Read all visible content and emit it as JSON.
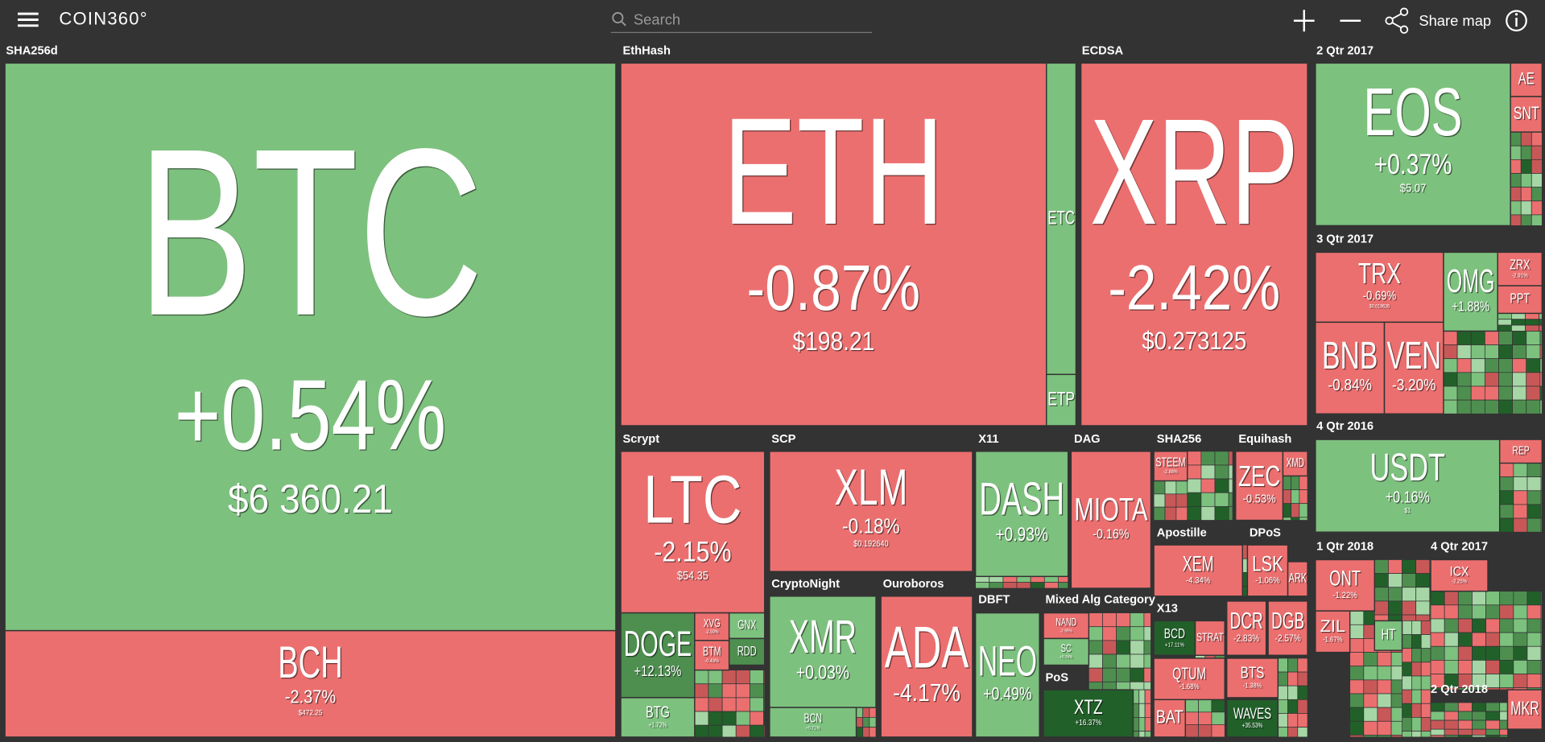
{
  "header": {
    "logo": "COIN360°",
    "search_placeholder": "Search",
    "share": "Share map"
  },
  "groups": [
    {
      "label": "SHA256d",
      "coins": [
        {
          "symbol": "BTC",
          "change": "+0.54%",
          "price": "$6 360.21"
        },
        {
          "symbol": "BCH",
          "change": "-2.37%",
          "price": "$472.25"
        }
      ]
    },
    {
      "label": "EthHash",
      "coins": [
        {
          "symbol": "ETH",
          "change": "-0.87%",
          "price": "$198.21"
        },
        {
          "symbol": "ETC"
        },
        {
          "symbol": "ETP"
        }
      ]
    },
    {
      "label": "ECDSA",
      "coins": [
        {
          "symbol": "XRP",
          "change": "-2.42%",
          "price": "$0.273125"
        }
      ]
    },
    {
      "label": "2 Qtr 2017",
      "coins": [
        {
          "symbol": "EOS",
          "change": "+0.37%",
          "price": "$5.07"
        },
        {
          "symbol": "AE"
        },
        {
          "symbol": "SNT"
        }
      ]
    },
    {
      "label": "3 Qtr 2017",
      "coins": [
        {
          "symbol": "TRX",
          "change": "-0.69%",
          "price": "$0.019626"
        },
        {
          "symbol": "BNB",
          "change": "-0.84%"
        },
        {
          "symbol": "VEN",
          "change": "-3.20%"
        },
        {
          "symbol": "OMG",
          "change": "+1.88%"
        },
        {
          "symbol": "ZRX",
          "change": "-2.91%"
        },
        {
          "symbol": "PPT"
        }
      ]
    },
    {
      "label": "4 Qtr 2016",
      "coins": [
        {
          "symbol": "USDT",
          "change": "+0.16%",
          "price": "$1"
        },
        {
          "symbol": "REP"
        }
      ]
    },
    {
      "label": "1 Qtr 2018",
      "coins": [
        {
          "symbol": "ONT",
          "change": "-1.22%"
        },
        {
          "symbol": "ZIL",
          "change": "-1.67%"
        },
        {
          "symbol": "HT"
        }
      ]
    },
    {
      "label": "4 Qtr 2017",
      "coins": [
        {
          "symbol": "ICX",
          "change": "-2.25%"
        }
      ]
    },
    {
      "label": "2 Qtr 2018",
      "coins": [
        {
          "symbol": "MKR"
        }
      ]
    },
    {
      "label": "Scrypt",
      "coins": [
        {
          "symbol": "LTC",
          "change": "-2.15%",
          "price": "$54.35"
        },
        {
          "symbol": "DOGE",
          "change": "+12.13%"
        },
        {
          "symbol": "BTG",
          "change": "+1.72%"
        },
        {
          "symbol": "XVG",
          "change": "-2.59%"
        },
        {
          "symbol": "BTM",
          "change": "-0.43%"
        },
        {
          "symbol": "GNX"
        },
        {
          "symbol": "RDD"
        }
      ]
    },
    {
      "label": "SCP",
      "coins": [
        {
          "symbol": "XLM",
          "change": "-0.18%",
          "price": "$0.192640"
        }
      ]
    },
    {
      "label": "X11",
      "coins": [
        {
          "symbol": "DASH",
          "change": "+0.93%"
        }
      ]
    },
    {
      "label": "DAG",
      "coins": [
        {
          "symbol": "MIOTA",
          "change": "-0.16%"
        }
      ]
    },
    {
      "label": "SHA256",
      "coins": [
        {
          "symbol": "STEEM",
          "change": "-2.88%"
        }
      ]
    },
    {
      "label": "Equihash",
      "coins": [
        {
          "symbol": "ZEC",
          "change": "-0.53%"
        },
        {
          "symbol": "XMD"
        }
      ]
    },
    {
      "label": "CryptoNight",
      "coins": [
        {
          "symbol": "XMR",
          "change": "+0.03%"
        },
        {
          "symbol": "BCN",
          "change": "+0.71%"
        }
      ]
    },
    {
      "label": "Ouroboros",
      "coins": [
        {
          "symbol": "ADA",
          "change": "-4.17%"
        }
      ]
    },
    {
      "label": "DBFT",
      "coins": [
        {
          "symbol": "NEO",
          "change": "+0.49%"
        }
      ]
    },
    {
      "label": "Mixed Alg Category",
      "coins": [
        {
          "symbol": "NAND",
          "change": "-2.95%"
        },
        {
          "symbol": "SC",
          "change": "+0.74%"
        }
      ]
    },
    {
      "label": "PoS",
      "coins": [
        {
          "symbol": "XTZ",
          "change": "+16.37%"
        }
      ]
    },
    {
      "label": "Apostille",
      "coins": [
        {
          "symbol": "XEM",
          "change": "-4.34%"
        }
      ]
    },
    {
      "label": "DPoS",
      "coins": [
        {
          "symbol": "LSK",
          "change": "-1.06%"
        },
        {
          "symbol": "ARK"
        }
      ]
    },
    {
      "label": "X13",
      "coins": [
        {
          "symbol": "BCD",
          "change": "+17.11%"
        },
        {
          "symbol": "STRAT"
        }
      ]
    }
  ],
  "more_coins": [
    {
      "symbol": "DCR",
      "change": "-2.83%"
    },
    {
      "symbol": "DGB",
      "change": "-2.57%"
    },
    {
      "symbol": "QTUM",
      "change": "-1.68%"
    },
    {
      "symbol": "BTS",
      "change": "-1.38%"
    },
    {
      "symbol": "BAT"
    },
    {
      "symbol": "WAVES",
      "change": "+35.53%"
    }
  ]
}
